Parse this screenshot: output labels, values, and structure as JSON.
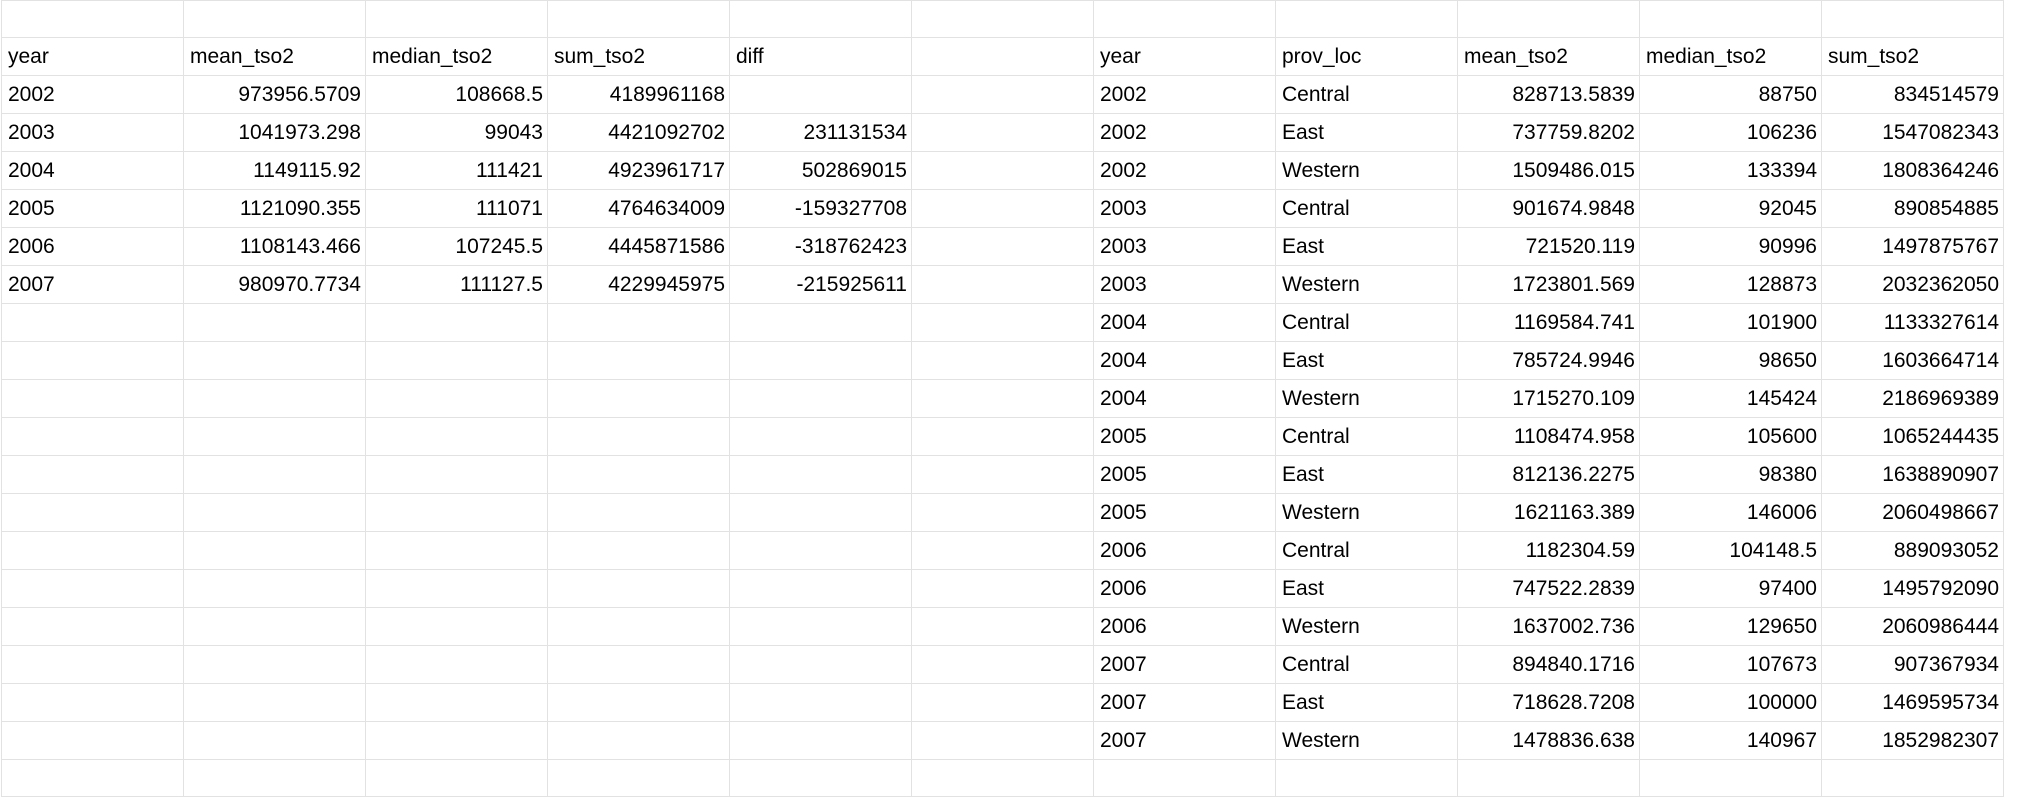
{
  "table_left": {
    "headers": [
      "year",
      "mean_tso2",
      "median_tso2",
      "sum_tso2",
      "diff"
    ],
    "rows": [
      [
        "2002",
        "973956.5709",
        "108668.5",
        "4189961168",
        ""
      ],
      [
        "2003",
        "1041973.298",
        "99043",
        "4421092702",
        "231131534"
      ],
      [
        "2004",
        "1149115.92",
        "111421",
        "4923961717",
        "502869015"
      ],
      [
        "2005",
        "1121090.355",
        "111071",
        "4764634009",
        "-159327708"
      ],
      [
        "2006",
        "1108143.466",
        "107245.5",
        "4445871586",
        "-318762423"
      ],
      [
        "2007",
        "980970.7734",
        "111127.5",
        "4229945975",
        "-215925611"
      ]
    ]
  },
  "table_right": {
    "headers": [
      "year",
      "prov_loc",
      "mean_tso2",
      "median_tso2",
      "sum_tso2"
    ],
    "rows": [
      [
        "2002",
        "Central",
        "828713.5839",
        "88750",
        "834514579"
      ],
      [
        "2002",
        "East",
        "737759.8202",
        "106236",
        "1547082343"
      ],
      [
        "2002",
        "Western",
        "1509486.015",
        "133394",
        "1808364246"
      ],
      [
        "2003",
        "Central",
        "901674.9848",
        "92045",
        "890854885"
      ],
      [
        "2003",
        "East",
        "721520.119",
        "90996",
        "1497875767"
      ],
      [
        "2003",
        "Western",
        "1723801.569",
        "128873",
        "2032362050"
      ],
      [
        "2004",
        "Central",
        "1169584.741",
        "101900",
        "1133327614"
      ],
      [
        "2004",
        "East",
        "785724.9946",
        "98650",
        "1603664714"
      ],
      [
        "2004",
        "Western",
        "1715270.109",
        "145424",
        "2186969389"
      ],
      [
        "2005",
        "Central",
        "1108474.958",
        "105600",
        "1065244435"
      ],
      [
        "2005",
        "East",
        "812136.2275",
        "98380",
        "1638890907"
      ],
      [
        "2005",
        "Western",
        "1621163.389",
        "146006",
        "2060498667"
      ],
      [
        "2006",
        "Central",
        "1182304.59",
        "104148.5",
        "889093052"
      ],
      [
        "2006",
        "East",
        "747522.2839",
        "97400",
        "1495792090"
      ],
      [
        "2006",
        "Western",
        "1637002.736",
        "129650",
        "2060986444"
      ],
      [
        "2007",
        "Central",
        "894840.1716",
        "107673",
        "907367934"
      ],
      [
        "2007",
        "East",
        "718628.7208",
        "100000",
        "1469595734"
      ],
      [
        "2007",
        "Western",
        "1478836.638",
        "140967",
        "1852982307"
      ]
    ]
  }
}
